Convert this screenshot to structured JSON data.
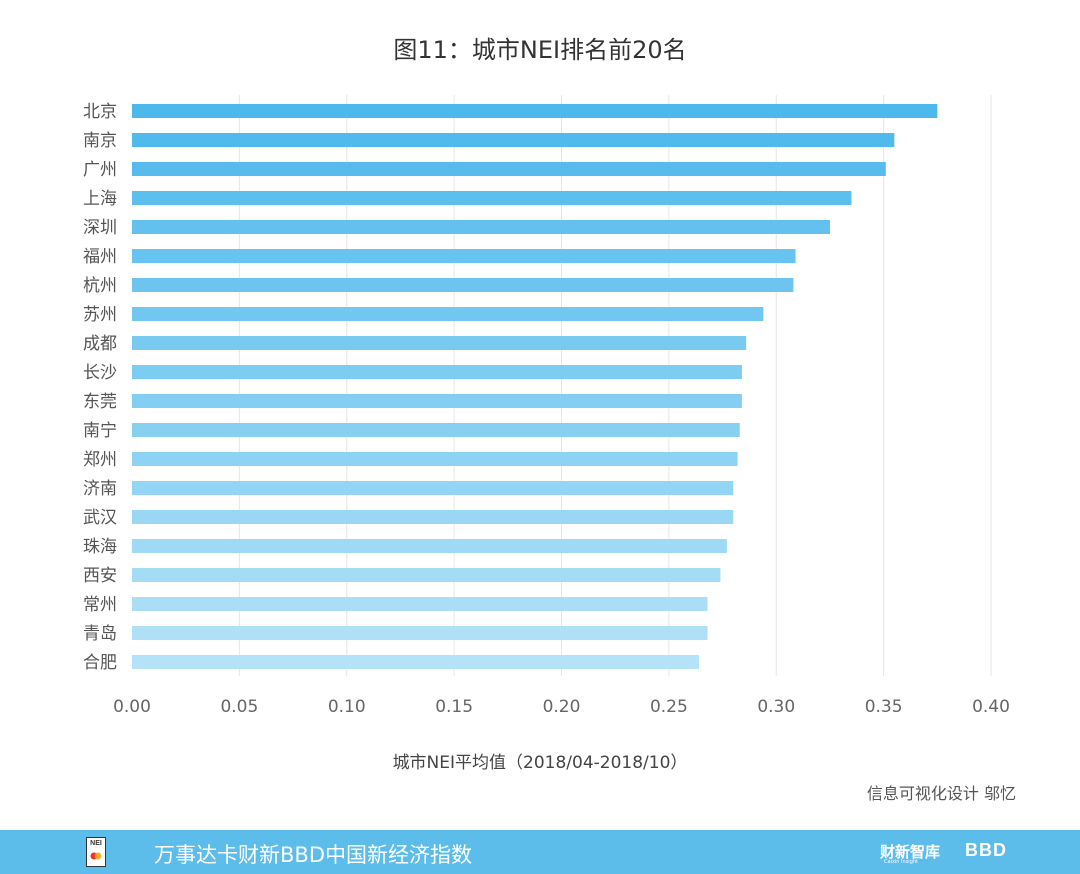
{
  "chart_data": {
    "type": "bar",
    "orientation": "horizontal",
    "title": "图11：城市NEI排名前20名",
    "xlabel": "城市NEI平均值（2018/04-2018/10）",
    "ylabel": "",
    "xlim": [
      0,
      0.4
    ],
    "xticks": [
      "0.00",
      "0.05",
      "0.10",
      "0.15",
      "0.20",
      "0.25",
      "0.30",
      "0.35",
      "0.40"
    ],
    "grid": "vertical",
    "categories": [
      "北京",
      "南京",
      "广州",
      "上海",
      "深圳",
      "福州",
      "杭州",
      "苏州",
      "成都",
      "长沙",
      "东莞",
      "南宁",
      "郑州",
      "济南",
      "武汉",
      "珠海",
      "西安",
      "常州",
      "青岛",
      "合肥"
    ],
    "values": [
      0.375,
      0.355,
      0.351,
      0.335,
      0.325,
      0.309,
      0.308,
      0.294,
      0.286,
      0.284,
      0.284,
      0.283,
      0.282,
      0.28,
      0.28,
      0.277,
      0.274,
      0.268,
      0.268,
      0.264
    ],
    "colors": {
      "bar_top": "#4cb8ec",
      "bar_bottom": "#b4e2f7",
      "grid": "#e6e6e6",
      "text": "#555555"
    }
  },
  "credit": "信息可视化设计 邬忆",
  "footer": {
    "title": "万事达卡财新BBD中国新经济指数",
    "logo_text": "NEI",
    "brand_1": "财新智库",
    "brand_1_sub": "Caixin Insight",
    "brand_2": "BBD",
    "background": "#5cbdeb"
  }
}
